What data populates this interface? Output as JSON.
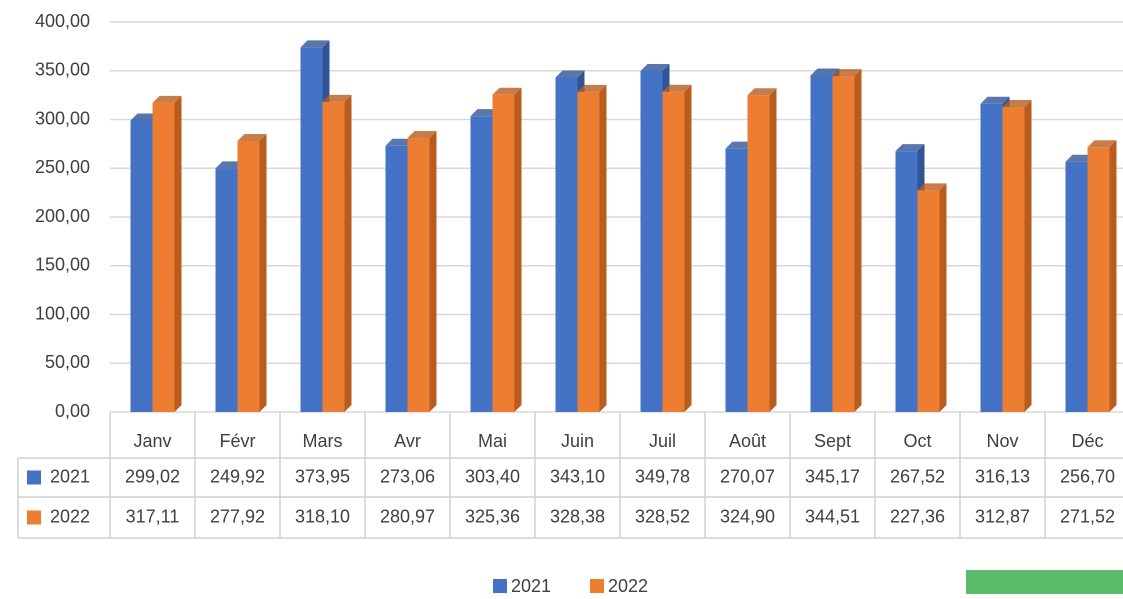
{
  "chart_data": {
    "type": "bar3d",
    "categories": [
      "Janv",
      "Févr",
      "Mars",
      "Avr",
      "Mai",
      "Juin",
      "Juil",
      "Août",
      "Sept",
      "Oct",
      "Nov",
      "Déc"
    ],
    "series": [
      {
        "name": "2021",
        "color": "#4472c4",
        "side": "#2f5597",
        "values": [
          299.02,
          249.92,
          373.95,
          273.06,
          303.4,
          343.1,
          349.78,
          270.07,
          345.17,
          267.52,
          316.13,
          256.7
        ],
        "value_labels": [
          "299,02",
          "249,92",
          "373,95",
          "273,06",
          "303,40",
          "343,10",
          "349,78",
          "270,07",
          "345,17",
          "267,52",
          "316,13",
          "256,70"
        ]
      },
      {
        "name": "2022",
        "color": "#ed7d31",
        "side": "#b85d1e",
        "values": [
          317.11,
          277.92,
          318.1,
          280.97,
          325.36,
          328.38,
          328.52,
          324.9,
          344.51,
          227.36,
          312.87,
          271.52
        ],
        "value_labels": [
          "317,11",
          "277,92",
          "318,10",
          "280,97",
          "325,36",
          "328,38",
          "328,52",
          "324,90",
          "344,51",
          "227,36",
          "312,87",
          "271,52"
        ]
      }
    ],
    "ylim": [
      0,
      400
    ],
    "yticks": [
      {
        "value": 0,
        "label": "0,00"
      },
      {
        "value": 50,
        "label": "50,00"
      },
      {
        "value": 100,
        "label": "100,00"
      },
      {
        "value": 150,
        "label": "150,00"
      },
      {
        "value": 200,
        "label": "200,00"
      },
      {
        "value": 250,
        "label": "250,00"
      },
      {
        "value": 300,
        "label": "300,00"
      },
      {
        "value": 350,
        "label": "350,00"
      },
      {
        "value": 400,
        "label": "400,00"
      }
    ],
    "grid": true,
    "legend": "bottom"
  }
}
